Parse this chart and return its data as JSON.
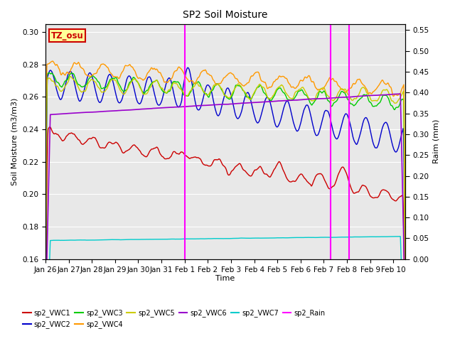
{
  "title": "SP2 Soil Moisture",
  "xlabel": "Time",
  "ylabel_left": "Soil Moisture (m3/m3)",
  "ylabel_right": "Raim (mm)",
  "xlim_days": [
    0,
    15.5
  ],
  "ylim_left": [
    0.16,
    0.305
  ],
  "ylim_right": [
    0.0,
    0.565
  ],
  "x_tick_labels": [
    "Jan 26",
    "Jan 27",
    "Jan 28",
    "Jan 29",
    "Jan 30",
    "Jan 31",
    "Feb 1",
    "Feb 2",
    "Feb 3",
    "Feb 4",
    "Feb 5",
    "Feb 6",
    "Feb 7",
    "Feb 8",
    "Feb 9",
    "Feb 10"
  ],
  "x_tick_positions": [
    0,
    1,
    2,
    3,
    4,
    5,
    6,
    7,
    8,
    9,
    10,
    11,
    12,
    13,
    14,
    15
  ],
  "bg_color": "#e8e8e8",
  "rain_lines": [
    6.0,
    12.3,
    13.1
  ],
  "tz_label": "TZ_osu",
  "tz_bg": "#ffff99",
  "tz_border": "#cc0000",
  "vwc1_color": "#cc0000",
  "vwc2_color": "#0000cc",
  "vwc3_color": "#00cc00",
  "vwc4_color": "#ff9900",
  "vwc5_color": "#cccc00",
  "vwc6_color": "#9900cc",
  "vwc7_color": "#00cccc",
  "rain_color": "#ff00ff",
  "yticks_left": [
    0.16,
    0.18,
    0.2,
    0.22,
    0.24,
    0.26,
    0.28,
    0.3
  ],
  "yticks_right": [
    0.0,
    0.05,
    0.1,
    0.15,
    0.2,
    0.25,
    0.3,
    0.35,
    0.4,
    0.45,
    0.5,
    0.55
  ]
}
